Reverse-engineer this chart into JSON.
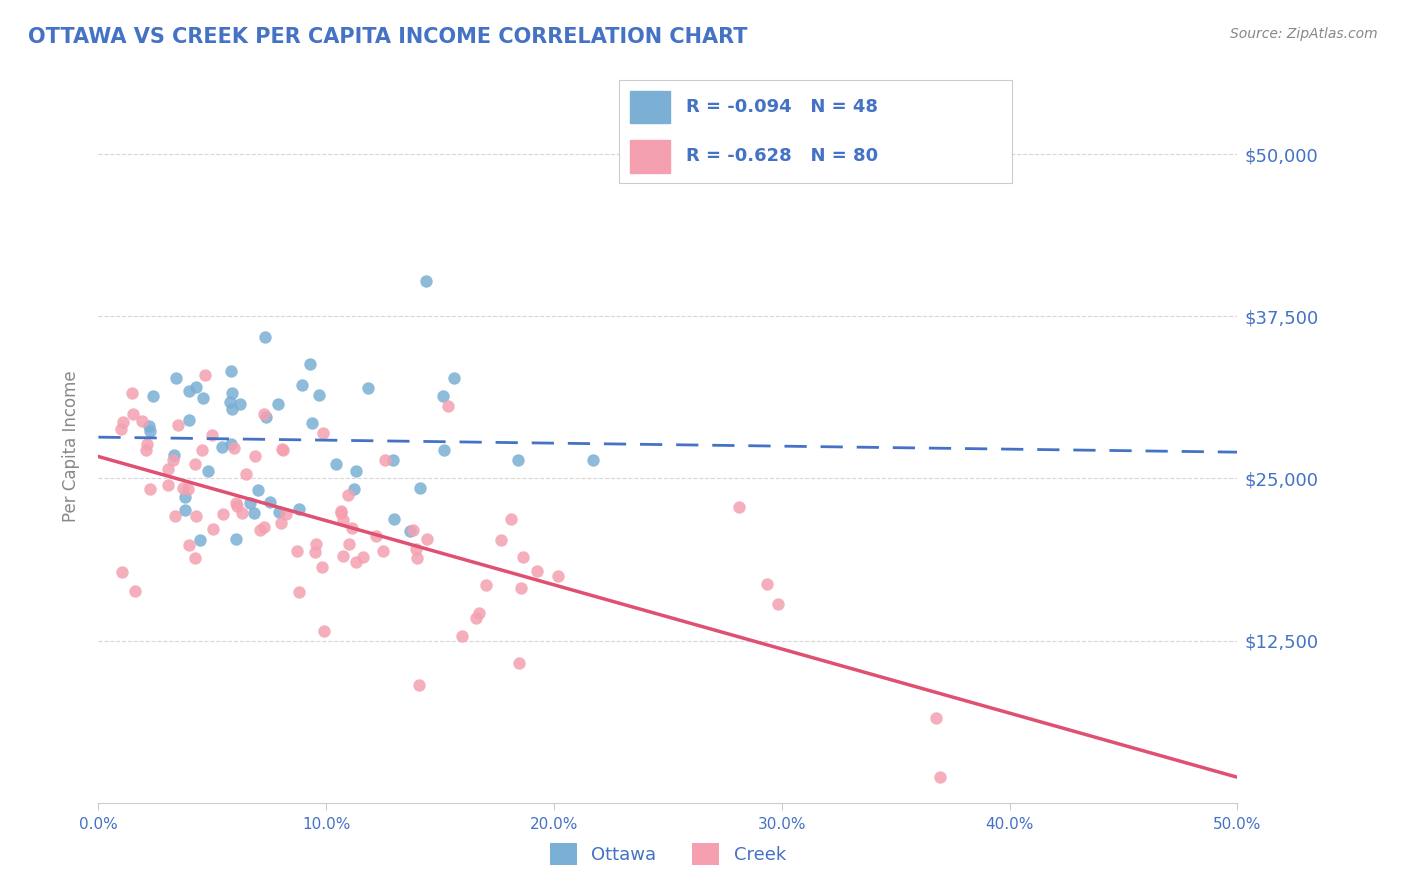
{
  "title": "OTTAWA VS CREEK PER CAPITA INCOME CORRELATION CHART",
  "source": "Source: ZipAtlas.com",
  "ylabel": "Per Capita Income",
  "xlim": [
    0.0,
    0.5
  ],
  "ylim": [
    0,
    55000
  ],
  "yticks": [
    12500,
    25000,
    37500,
    50000
  ],
  "ytick_labels": [
    "$12,500",
    "$25,000",
    "$37,500",
    "$50,000"
  ],
  "xtick_labels": [
    "0.0%",
    "10.0%",
    "20.0%",
    "30.0%",
    "40.0%",
    "50.0%"
  ],
  "xticks": [
    0.0,
    0.1,
    0.2,
    0.3,
    0.4,
    0.5
  ],
  "ottawa_color": "#7BAFD4",
  "creek_color": "#F4A0B0",
  "ottawa_line_color": "#4472C4",
  "creek_line_color": "#E05070",
  "background_color": "#FFFFFF",
  "grid_color": "#CCCCCC",
  "axis_color": "#4472C4",
  "legend_text_color": "#4472C4",
  "R_ottawa": -0.094,
  "N_ottawa": 48,
  "R_creek": -0.628,
  "N_creek": 80
}
